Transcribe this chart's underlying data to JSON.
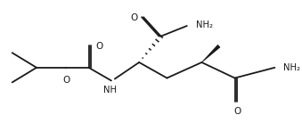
{
  "bg_color": "#ffffff",
  "line_color": "#1a1a1a",
  "lw": 1.3,
  "figsize": [
    3.39,
    1.38
  ],
  "dpi": 100,
  "xlim": [
    0,
    339
  ],
  "ylim": [
    0,
    138
  ]
}
